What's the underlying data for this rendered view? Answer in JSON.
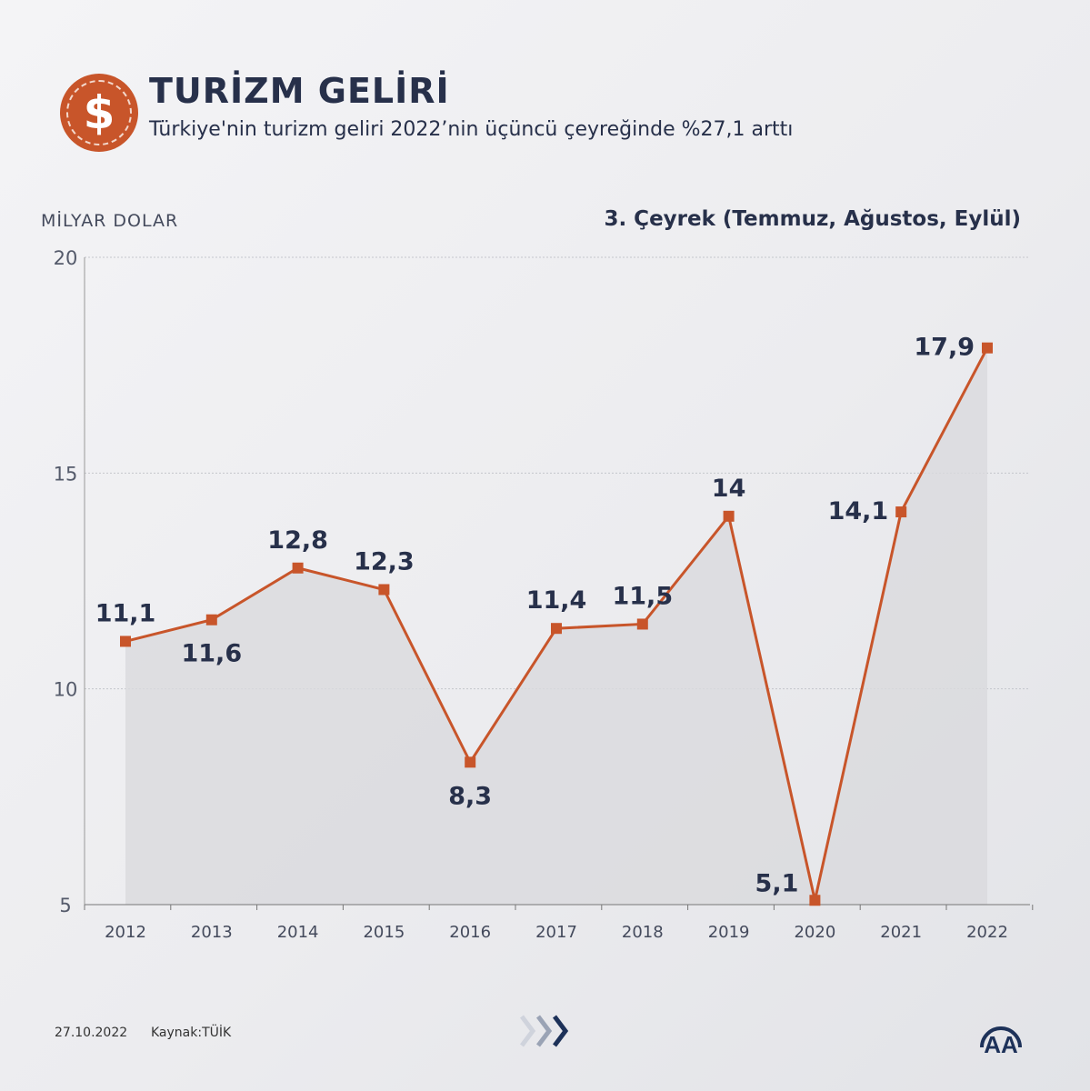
{
  "header": {
    "title": "TURİZM GELİRİ",
    "subtitle": "Türkiye'nin turizm geliri 2022’nin üçüncü çeyreğinde %27,1 arttı",
    "icon": "dollar-coin-icon"
  },
  "chart_data": {
    "type": "area",
    "ylabel": "MİLYAR DOLAR",
    "legend_note": "3. Çeyrek (Temmuz, Ağustos, Eylül)",
    "categories": [
      "2012",
      "2013",
      "2014",
      "2015",
      "2016",
      "2017",
      "2018",
      "2019",
      "2020",
      "2021",
      "2022"
    ],
    "values": [
      11.1,
      11.6,
      12.8,
      12.3,
      8.3,
      11.4,
      11.5,
      14,
      5.1,
      14.1,
      17.9
    ],
    "data_labels": [
      "11,1",
      "11,6",
      "12,8",
      "12,3",
      "8,3",
      "11,4",
      "11,5",
      "14",
      "5,1",
      "14,1",
      "17,9"
    ],
    "ylim": [
      5,
      20
    ],
    "yticks": [
      5,
      10,
      15,
      20
    ],
    "ytick_labels": [
      "5",
      "10",
      "15",
      "20"
    ],
    "grid": true,
    "colors": {
      "line": "#c8552a",
      "area": "#d9dadd",
      "text": "#27304a"
    }
  },
  "footer": {
    "date": "27.10.2022",
    "source": "Kaynak:TÜİK",
    "logo": "AA"
  }
}
